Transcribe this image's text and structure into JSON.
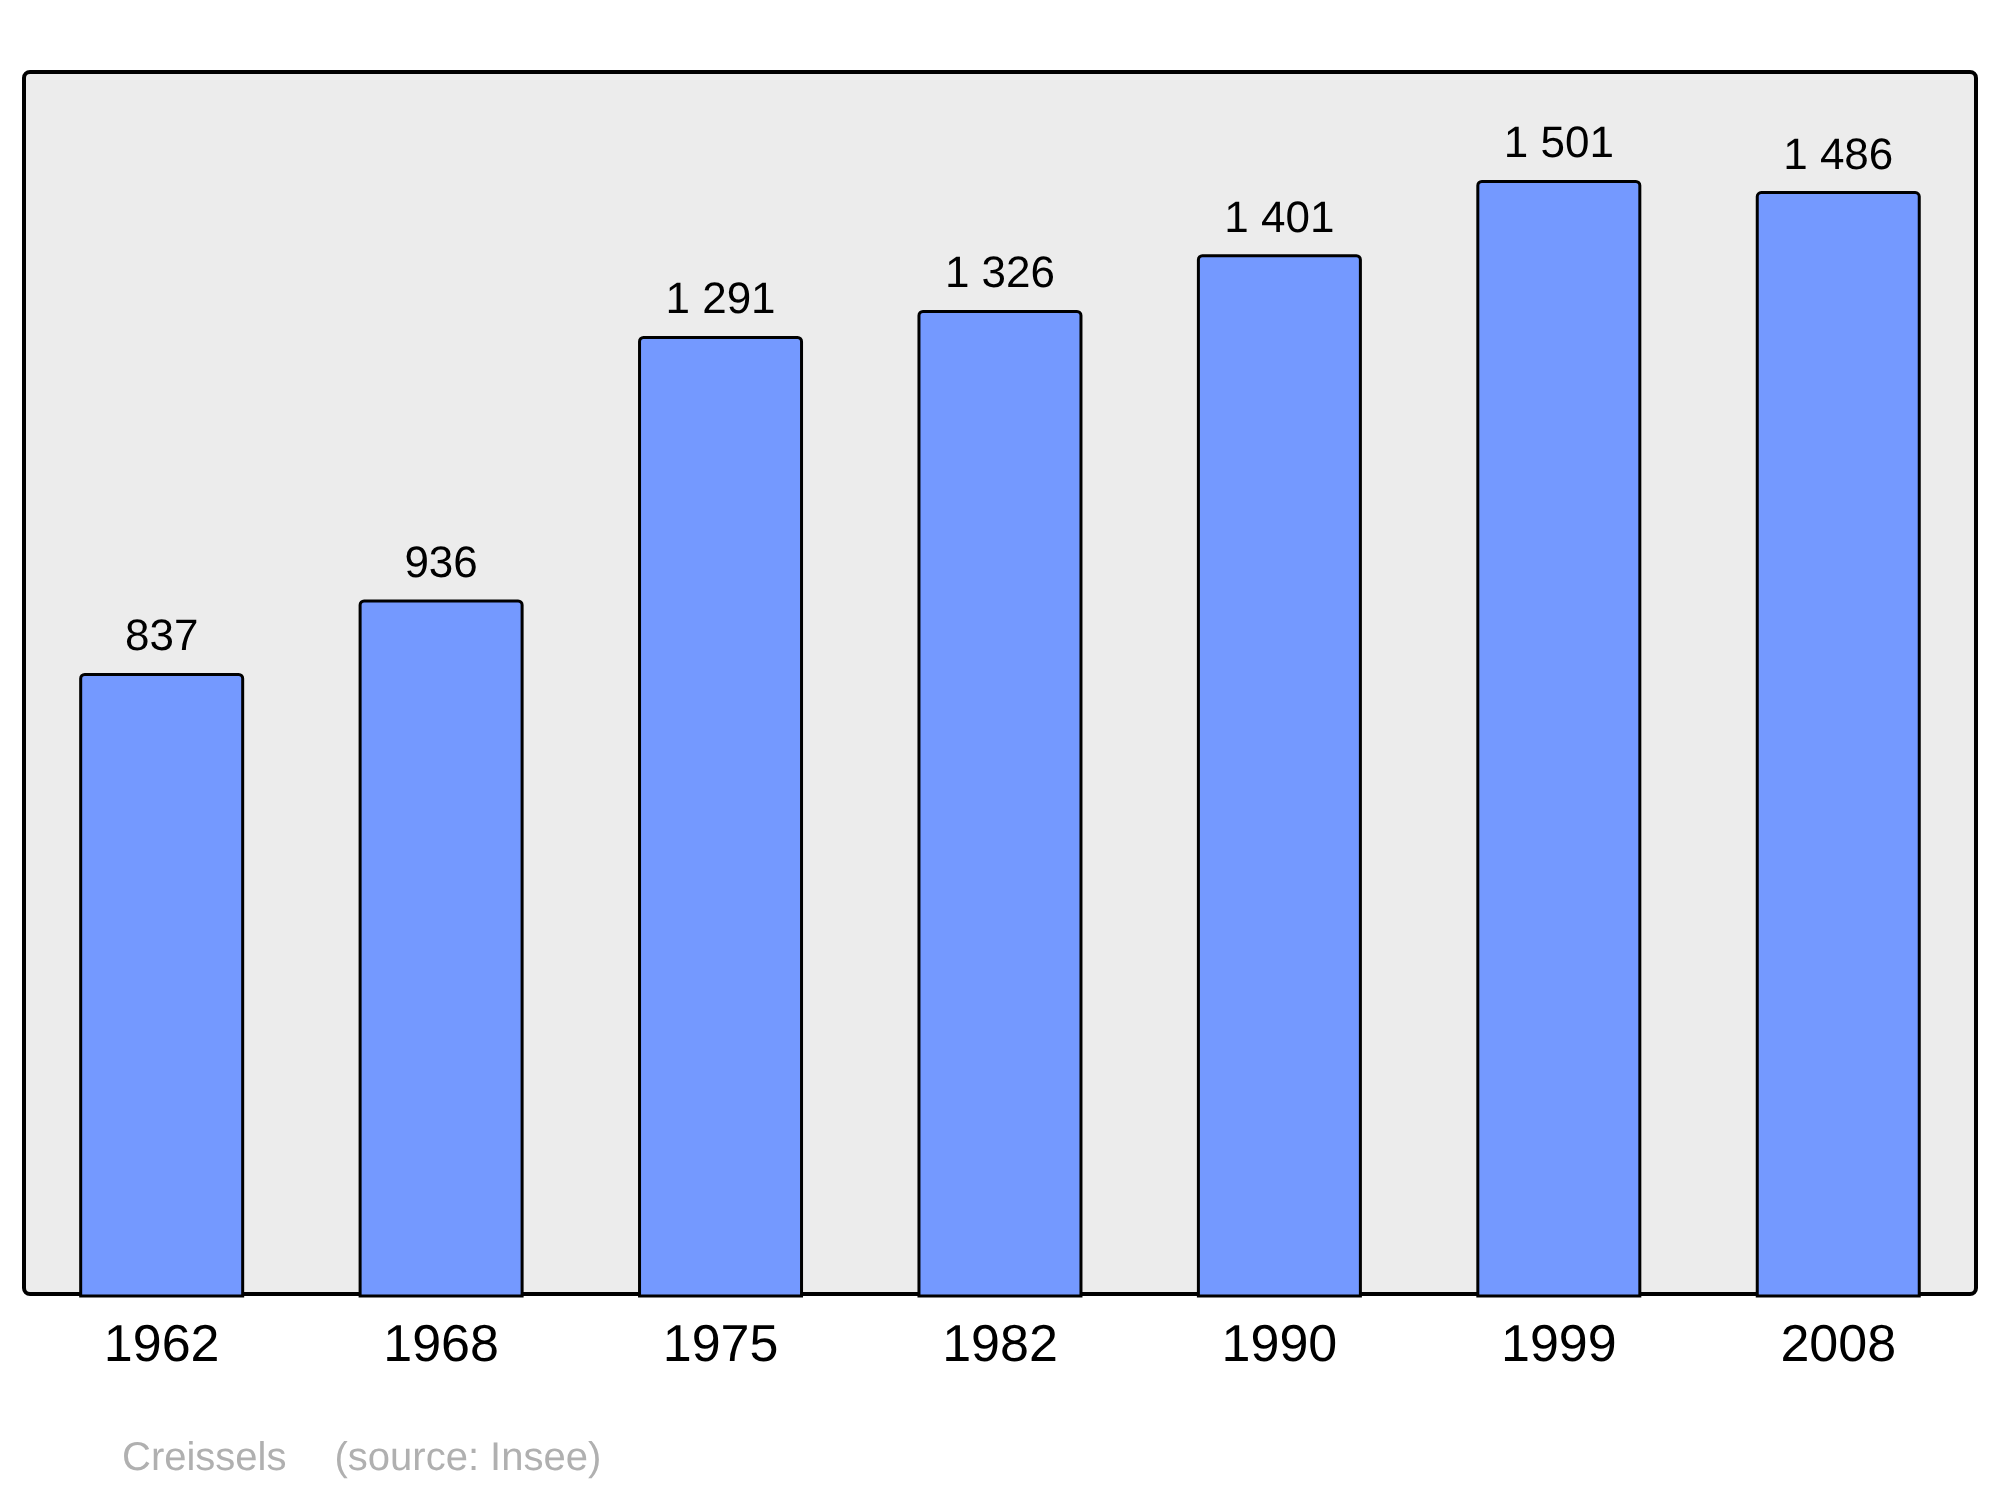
{
  "chart_data": {
    "type": "bar",
    "categories": [
      "1962",
      "1968",
      "1975",
      "1982",
      "1990",
      "1999",
      "2008"
    ],
    "values": [
      837,
      936,
      1291,
      1326,
      1401,
      1501,
      1486
    ],
    "value_labels": [
      "837",
      "936",
      "1 291",
      "1 326",
      "1 401",
      "1 501",
      "1 486"
    ],
    "color": "#7499ff",
    "annotations": [
      "Creissels",
      "(source: Insee)"
    ]
  }
}
